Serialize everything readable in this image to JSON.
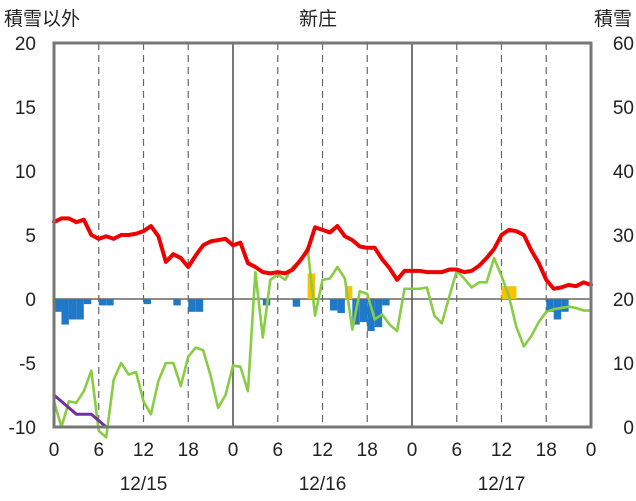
{
  "chart_data": {
    "type": "line",
    "title": "新庄",
    "left_axis_label": "積雪以外",
    "right_axis_label": "積雪",
    "left_ylim": [
      -10,
      20
    ],
    "right_ylim": [
      0,
      60
    ],
    "left_ticks": [
      "-10",
      "-5",
      "0",
      "5",
      "10",
      "15",
      "20"
    ],
    "right_ticks": [
      "0",
      "10",
      "20",
      "30",
      "40",
      "50",
      "60"
    ],
    "x_range_hours": [
      0,
      72
    ],
    "x_tick_labels": [
      "0",
      "6",
      "12",
      "18",
      "0",
      "6",
      "12",
      "18",
      "0",
      "6",
      "12",
      "18",
      "0"
    ],
    "date_labels": [
      {
        "label": "12/15",
        "at_hour": 12
      },
      {
        "label": "12/16",
        "at_hour": 36
      },
      {
        "label": "12/17",
        "at_hour": 60
      }
    ],
    "grid": {
      "solid_at_hours": [
        24,
        48
      ],
      "dashed_at_hours": [
        6,
        12,
        18,
        30,
        36,
        42,
        54,
        60,
        66
      ]
    },
    "colors": {
      "temperature": "#ee0000",
      "dewpoint_or_other": "#88cc44",
      "snow_depth": "#7030a0",
      "bar_negative": "#1f78c8",
      "bar_positive": "#ffc000"
    },
    "series": [
      {
        "key": "temperature",
        "axis": "left",
        "values": [
          6.0,
          6.3,
          6.3,
          6.0,
          6.2,
          5.0,
          4.7,
          4.9,
          4.7,
          5.0,
          5.0,
          5.1,
          5.3,
          5.7,
          4.9,
          2.9,
          3.5,
          3.2,
          2.5,
          3.4,
          4.2,
          4.5,
          4.6,
          4.7,
          4.2,
          4.4,
          2.8,
          2.5,
          2.1,
          2.0,
          2.1,
          2.0,
          2.3,
          3.0,
          3.8,
          5.6,
          5.4,
          5.2,
          5.7,
          4.9,
          4.6,
          4.1,
          4.0,
          4.0,
          3.1,
          2.4,
          1.5,
          2.2,
          2.2,
          2.2,
          2.1,
          2.1,
          2.1,
          2.3,
          2.3,
          2.1,
          2.2,
          2.6,
          3.2,
          3.9,
          5.0,
          5.4,
          5.3,
          5.0,
          3.8,
          2.8,
          1.5,
          0.8,
          0.9,
          1.1,
          1.0,
          1.3,
          1.1
        ]
      },
      {
        "key": "dewpoint_or_other",
        "axis": "left",
        "values": [
          -8.0,
          -10.0,
          -8.0,
          -8.1,
          -7.2,
          -5.6,
          -10.3,
          -10.8,
          -6.3,
          -5.0,
          -5.9,
          -5.7,
          -8.0,
          -9.0,
          -6.4,
          -5.0,
          -5.0,
          -6.8,
          -4.5,
          -3.8,
          -4.0,
          -6.0,
          -8.5,
          -7.5,
          -5.2,
          -5.3,
          -7.2,
          2.1,
          -3.0,
          1.5,
          1.9,
          1.5,
          2.5,
          3.0,
          4.0,
          -1.3,
          1.5,
          1.6,
          2.5,
          1.6,
          -2.4,
          0.6,
          0.4,
          -1.6,
          -1.2,
          -2.0,
          -2.5,
          0.8,
          0.8,
          0.8,
          0.9,
          -1.3,
          -1.9,
          0.2,
          2.2,
          1.6,
          0.9,
          1.3,
          1.3,
          3.2,
          1.8,
          0.2,
          -2.2,
          -3.7,
          -2.9,
          -1.8,
          -1.0,
          -0.8,
          -0.7,
          -0.6,
          -0.7,
          -0.9,
          -0.9
        ]
      },
      {
        "key": "snow_depth",
        "axis": "right",
        "values": [
          5,
          4,
          3,
          2,
          2,
          2,
          1,
          0,
          0,
          0,
          0,
          0,
          0,
          0,
          0,
          0,
          0,
          0,
          0,
          0,
          0,
          0,
          0,
          0,
          0,
          0,
          0,
          0,
          0,
          0,
          0,
          0,
          0,
          0,
          0,
          0,
          0,
          0,
          0,
          0,
          0,
          0,
          0,
          0,
          0,
          0,
          0,
          0,
          0,
          0,
          0,
          0,
          0,
          0,
          0,
          0,
          0,
          0,
          0,
          0,
          0,
          0,
          0,
          0,
          0,
          0,
          0,
          0,
          0,
          0,
          0,
          0,
          0
        ]
      }
    ],
    "bars": {
      "axis": "left",
      "bar_width_hours": 1,
      "values": [
        -1.0,
        -2.0,
        -1.6,
        -1.6,
        -0.4,
        0.0,
        -0.5,
        -0.5,
        0.0,
        0.0,
        0.0,
        0.0,
        -0.4,
        0.0,
        0.0,
        0.0,
        -0.5,
        0.0,
        -1.0,
        -1.0,
        0.0,
        0.0,
        0.0,
        0.0,
        0.0,
        0.0,
        0.0,
        0.0,
        -0.5,
        0.0,
        0.0,
        0.0,
        -0.6,
        0.0,
        2.0,
        0.0,
        0.0,
        -0.9,
        -1.1,
        1.0,
        -2.0,
        -1.8,
        -2.5,
        -2.2,
        -0.5,
        0.0,
        0.0,
        0.0,
        0.0,
        0.0,
        0.0,
        0.0,
        0.0,
        0.0,
        0.0,
        0.0,
        0.0,
        0.0,
        0.0,
        0.0,
        1.0,
        1.0,
        0.0,
        0.0,
        0.0,
        0.0,
        -1.0,
        -1.6,
        -1.0,
        0.0,
        0.0,
        0.0
      ]
    }
  }
}
